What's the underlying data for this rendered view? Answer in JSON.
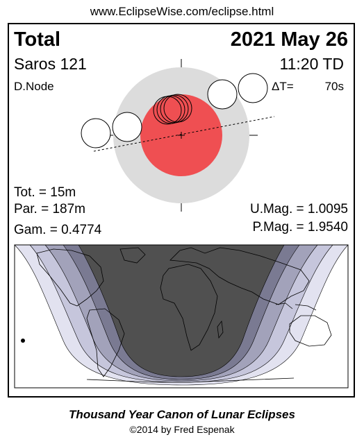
{
  "header": {
    "url": "www.EclipseWise.com/eclipse.html"
  },
  "eclipse": {
    "type": "Total",
    "date": "2021 May 26",
    "saros": "Saros 121",
    "time": "11:20 TD",
    "node": "D.Node",
    "delta_t_label": "ΔT=",
    "delta_t_value": "70s",
    "tot": "Tot. =  15m",
    "par": "Par. = 187m",
    "gam": "Gam. = 0.4774",
    "umag": "U.Mag. = 1.0095",
    "pmag": "P.Mag. = 1.9540"
  },
  "colors": {
    "penumbra": "#dcdcdc",
    "umbra": "#ef4f52",
    "night": "#505050",
    "band1": "#7a7a92",
    "band2": "#a2a2ba",
    "band3": "#c6c6dc",
    "band4": "#e2e2f0"
  },
  "footer": {
    "title": "Thousand Year Canon of Lunar Eclipses",
    "copyright": "©2014 by Fred Espenak"
  }
}
